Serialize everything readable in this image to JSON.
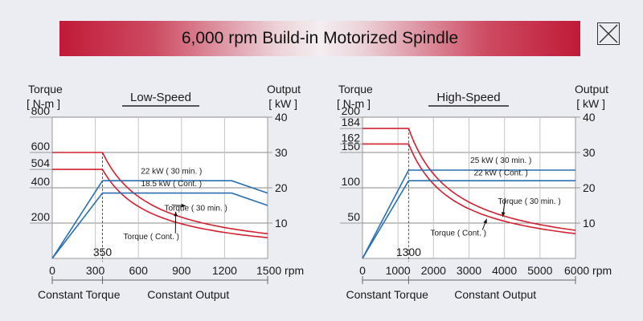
{
  "title": "6,000 rpm Build-in Motorized Spindle",
  "close_icon": "close-x-icon",
  "chart_data": [
    {
      "type": "line",
      "title": "Low-Speed",
      "ylabel_left": "Torque",
      "ylabel_left_unit": "[ N-m ]",
      "ylabel_right": "Output",
      "ylabel_right_unit": "[ kW ]",
      "xlim": [
        0,
        1500
      ],
      "ylim_left": [
        0,
        800
      ],
      "ylim_right": [
        0,
        40
      ],
      "x_ticks": [
        "0",
        "300",
        "600",
        "900",
        "1200",
        "1500 rpm"
      ],
      "x_tick_values": [
        0,
        300,
        600,
        900,
        1200,
        1500
      ],
      "y_left_ticks": [
        "200",
        "400",
        "504",
        "600",
        "800"
      ],
      "y_left_tick_values": [
        200,
        400,
        504,
        600,
        800
      ],
      "y_right_ticks": [
        "10",
        "20",
        "30",
        "40"
      ],
      "y_right_tick_values": [
        10,
        20,
        30,
        40
      ],
      "base_speed_label": "350",
      "base_speed": 350,
      "region_left": "Constant Torque",
      "region_right": "Constant Output",
      "region_split": 350,
      "series": [
        {
          "name": "Torque ( 30 min. )",
          "axis": "left",
          "color": "#d2202f",
          "constant": 600,
          "base": 350
        },
        {
          "name": "Torque ( Cont. )",
          "axis": "left",
          "color": "#d2202f",
          "constant": 504,
          "base": 350
        },
        {
          "name": "22 kW ( 30 min. )",
          "axis": "right",
          "color": "#2a6fb0",
          "points": [
            [
              0,
              0
            ],
            [
              350,
              22
            ],
            [
              1250,
              22
            ],
            [
              1500,
              18.5
            ]
          ]
        },
        {
          "name": "18.5 kW ( Cont. )",
          "axis": "right",
          "color": "#2a6fb0",
          "points": [
            [
              0,
              0
            ],
            [
              350,
              18.5
            ],
            [
              1250,
              18.5
            ],
            [
              1500,
              15
            ]
          ]
        }
      ],
      "annotations": [
        {
          "text": "22 kW ( 30 min. )",
          "x": 830,
          "y": 24
        },
        {
          "text": "18.5 kW ( Cont. )",
          "x": 830,
          "y": 20.5
        },
        {
          "text": "Torque ( 30 min. )",
          "x": 1000,
          "y": 13.5,
          "arrow_to": [
            930,
            298
          ]
        },
        {
          "text": "Torque ( Cont. )",
          "x": 690,
          "y": 5.5,
          "arrow_to": [
            860,
            265
          ]
        }
      ]
    },
    {
      "type": "line",
      "title": "High-Speed",
      "ylabel_left": "Torque",
      "ylabel_left_unit": "[ N-m ]",
      "ylabel_right": "Output",
      "ylabel_right_unit": "[ kW ]",
      "xlim": [
        0,
        6000
      ],
      "ylim_left": [
        0,
        200
      ],
      "ylim_right": [
        0,
        40
      ],
      "x_ticks": [
        "0",
        "1000",
        "2000",
        "3000",
        "4000",
        "5000",
        "6000 rpm"
      ],
      "x_tick_values": [
        0,
        1000,
        2000,
        3000,
        4000,
        5000,
        6000
      ],
      "y_left_ticks": [
        "50",
        "100",
        "150",
        "162",
        "184",
        "200"
      ],
      "y_left_tick_values": [
        50,
        100,
        150,
        162,
        184,
        200
      ],
      "y_right_ticks": [
        "10",
        "20",
        "30",
        "40"
      ],
      "y_right_tick_values": [
        10,
        20,
        30,
        40
      ],
      "base_speed_label": "1300",
      "base_speed": 1300,
      "region_left": "Constant Torque",
      "region_right": "Constant Output",
      "region_split": 1300,
      "series": [
        {
          "name": "Torque ( 30 min. )",
          "axis": "left",
          "color": "#d2202f",
          "constant": 184,
          "base": 1300
        },
        {
          "name": "Torque ( Cont. )",
          "axis": "left",
          "color": "#d2202f",
          "constant": 162,
          "base": 1300
        },
        {
          "name": "25 kW ( 30 min. )",
          "axis": "right",
          "color": "#2a6fb0",
          "points": [
            [
              0,
              0
            ],
            [
              1300,
              25
            ],
            [
              6000,
              25
            ]
          ]
        },
        {
          "name": "22 kW ( Cont. )",
          "axis": "right",
          "color": "#2a6fb0",
          "points": [
            [
              0,
              0
            ],
            [
              1300,
              22
            ],
            [
              6000,
              22
            ]
          ]
        }
      ],
      "annotations": [
        {
          "text": "25 kW ( 30 min. )",
          "x": 3900,
          "y": 27
        },
        {
          "text": "22 kW ( Cont. )",
          "x": 3900,
          "y": 23.5
        },
        {
          "text": "Torque ( 30 min. )",
          "x": 4700,
          "y": 15.5,
          "arrow_to": [
            3950,
            59
          ]
        },
        {
          "text": "Torque ( Cont. )",
          "x": 2700,
          "y": 6.5,
          "arrow_to": [
            3500,
            56
          ]
        }
      ]
    }
  ]
}
